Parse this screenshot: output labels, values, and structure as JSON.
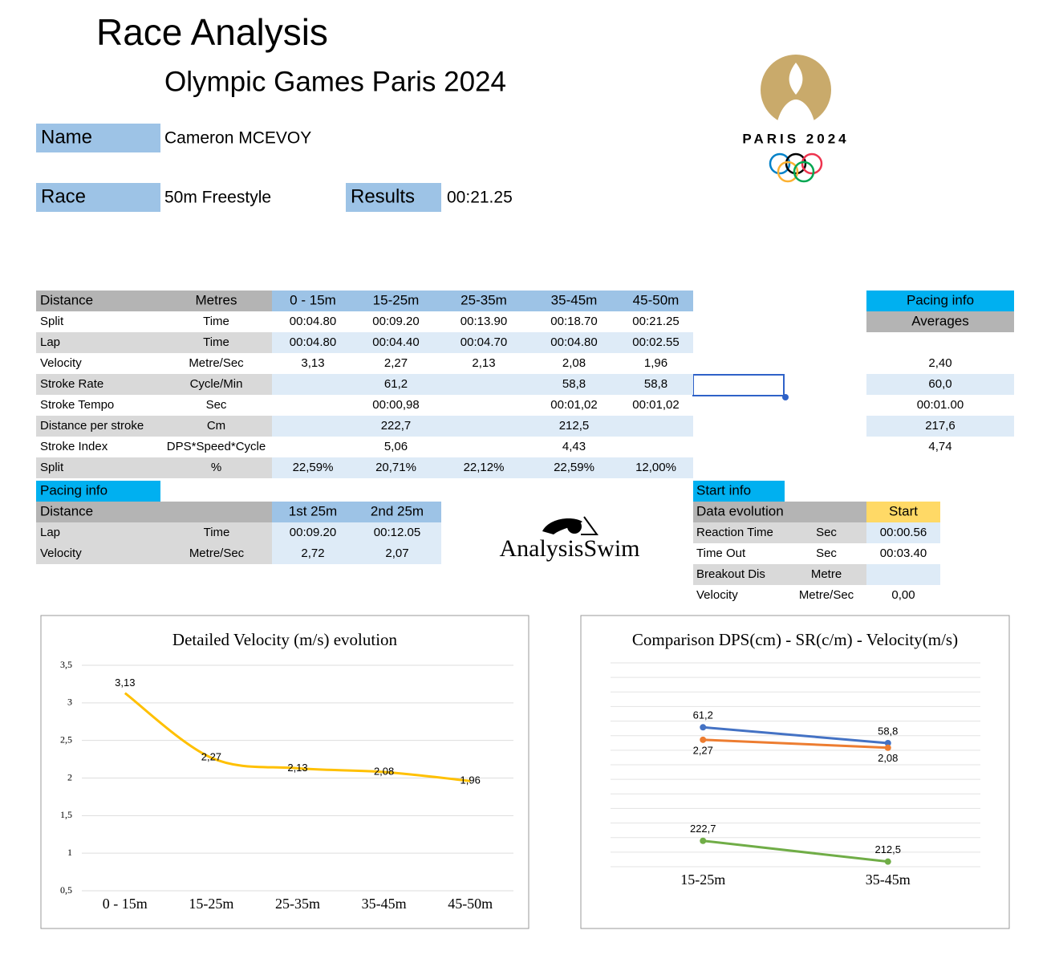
{
  "header": {
    "title": "Race Analysis",
    "subtitle": "Olympic Games Paris 2024"
  },
  "info": {
    "name_label": "Name",
    "name": "Cameron MCEVOY",
    "race_label": "Race",
    "race": "50m Freestyle",
    "results_label": "Results",
    "results": "00:21.25"
  },
  "logo": {
    "text": "PARIS 2024",
    "brand": "AnalysisSwim"
  },
  "main_table": {
    "header": [
      "Distance",
      "Metres",
      "0 - 15m",
      "15-25m",
      "25-35m",
      "35-45m",
      "45-50m"
    ],
    "rows": [
      [
        "Split",
        "Time",
        "00:04.80",
        "00:09.20",
        "00:13.90",
        "00:18.70",
        "00:21.25"
      ],
      [
        "Lap",
        "Time",
        "00:04.80",
        "00:04.40",
        "00:04.70",
        "00:04.80",
        "00:02.55"
      ],
      [
        "Velocity",
        "Metre/Sec",
        "3,13",
        "2,27",
        "2,13",
        "2,08",
        "1,96"
      ],
      [
        "Stroke Rate",
        "Cycle/Min",
        null,
        "61,2",
        null,
        "58,8",
        "58,8"
      ],
      [
        "Stroke Tempo",
        "Sec",
        null,
        "00:00,98",
        null,
        "00:01,02",
        "00:01,02"
      ],
      [
        "Distance per stroke",
        "Cm",
        null,
        "222,7",
        null,
        "212,5",
        null
      ],
      [
        "Stroke Index",
        "DPS*Speed*Cycle",
        null,
        "5,06",
        null,
        "4,43",
        null
      ],
      [
        "Split",
        "%",
        "22,59%",
        "20,71%",
        "22,12%",
        "22,59%",
        "12,00%"
      ]
    ]
  },
  "averages": {
    "title": "Pacing info",
    "subtitle": "Averages",
    "values": [
      "2,40",
      "60,0",
      "00:01.00",
      "217,6",
      "4,74"
    ]
  },
  "pacing_table": {
    "title": "Pacing info",
    "header": [
      "Distance",
      "1st 25m",
      "2nd 25m"
    ],
    "rows": [
      [
        "Lap",
        "Time",
        "00:09.20",
        "00:12.05"
      ],
      [
        "Velocity",
        "Metre/Sec",
        "2,72",
        "2,07"
      ]
    ]
  },
  "start_table": {
    "title": "Start info",
    "header": [
      "Data evolution",
      "Start"
    ],
    "rows": [
      [
        "Reaction Time",
        "Sec",
        "00:00.56"
      ],
      [
        "Time Out",
        "Sec",
        "00:03.40"
      ],
      [
        "Breakout Dis",
        "Metre",
        null
      ],
      [
        "Velocity",
        "Metre/Sec",
        "0,00"
      ]
    ]
  },
  "chart_data": [
    {
      "type": "line",
      "title": "Detailed Velocity (m/s)  evolution",
      "categories": [
        "0 - 15m",
        "15-25m",
        "25-35m",
        "35-45m",
        "45-50m"
      ],
      "values": [
        3.13,
        2.27,
        2.13,
        2.08,
        1.96
      ],
      "value_labels": [
        "3,13",
        "2,27",
        "2,13",
        "2,08",
        "1,96"
      ],
      "color": "#ffc000",
      "ylim": [
        0.5,
        3.5
      ],
      "yticks": [
        {
          "value": 0.5,
          "label": "0,5"
        },
        1,
        {
          "value": 1.5,
          "label": "1,5"
        },
        2,
        {
          "value": 2.5,
          "label": "2,5"
        },
        3,
        {
          "value": 3.5,
          "label": "3,5"
        }
      ],
      "grid": true
    },
    {
      "type": "line",
      "title": "Comparison DPS(cm) - SR(c/m) - Velocity(m/s)",
      "categories": [
        "15-25m",
        "35-45m"
      ],
      "grid": true,
      "series": [
        {
          "color": "#4472c4",
          "values": [
            61.2,
            58.8
          ],
          "value_labels": [
            "61,2",
            "58,8"
          ],
          "ylim": [
            40,
            71
          ]
        },
        {
          "color": "#ed7d31",
          "values": [
            2.27,
            2.08
          ],
          "value_labels": [
            "2,27",
            "2,08"
          ],
          "ylim": [
            -0.75,
            4.1
          ]
        },
        {
          "color": "#70ad47",
          "values": [
            222.7,
            212.5
          ],
          "value_labels": [
            "222,7",
            "212,5"
          ],
          "ylim": [
            210,
            310
          ]
        }
      ]
    }
  ]
}
